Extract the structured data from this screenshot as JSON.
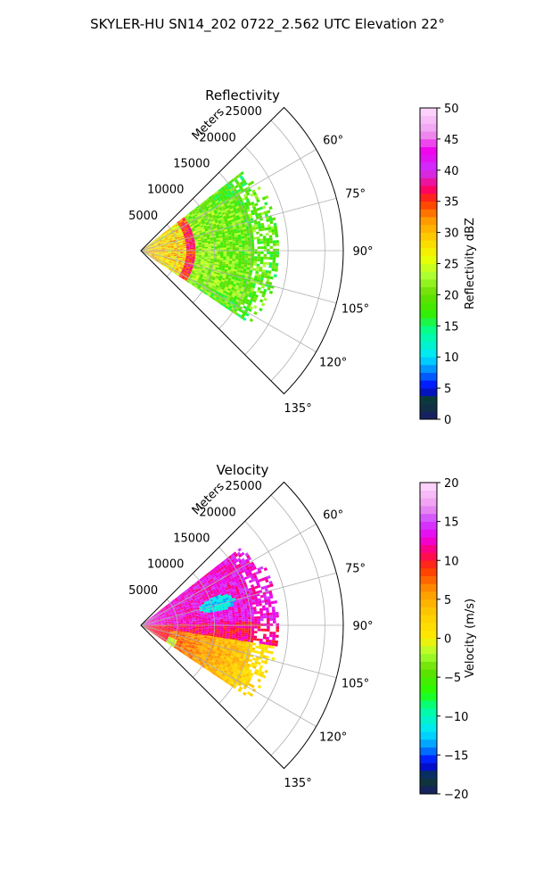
{
  "figure_title": "SKYLER-HU  SN14_202  0722_2.562 UTC Elevation 22°",
  "chart_data": [
    {
      "type": "heatmap",
      "title": "Reflectivity",
      "projection": "polar-sector",
      "azimuth_range_deg": [
        45,
        135
      ],
      "range_limit_m": 27500,
      "radial_label": "Meters",
      "radial_ticks": [
        "5000",
        "10000",
        "15000",
        "20000",
        "25000"
      ],
      "radial_tick_values": [
        5000,
        10000,
        15000,
        20000,
        25000
      ],
      "azimuth_ticks": [
        "60°",
        "75°",
        "90°",
        "105°",
        "120°",
        "135°"
      ],
      "azimuth_tick_values": [
        60,
        75,
        90,
        105,
        120,
        135
      ],
      "data_extent": {
        "azimuth_deg": [
          52,
          124
        ],
        "range_m_max": 18500
      },
      "grid": true,
      "colorbar": {
        "label": "Reflectivity dBZ",
        "vmin": 0,
        "vmax": 50,
        "ticks": [
          "0",
          "5",
          "10",
          "15",
          "20",
          "25",
          "30",
          "35",
          "40",
          "45",
          "50"
        ],
        "tick_values": [
          0,
          5,
          10,
          15,
          20,
          25,
          30,
          35,
          40,
          45,
          50
        ],
        "stops": [
          {
            "v": 0,
            "color": "#1a1a6e"
          },
          {
            "v": 3,
            "color": "#0b3d2e"
          },
          {
            "v": 5,
            "color": "#0000ff"
          },
          {
            "v": 8,
            "color": "#0090ff"
          },
          {
            "v": 10,
            "color": "#00e6ff"
          },
          {
            "v": 14,
            "color": "#00ff99"
          },
          {
            "v": 17,
            "color": "#33ee00"
          },
          {
            "v": 20,
            "color": "#66dd00"
          },
          {
            "v": 23,
            "color": "#aaff33"
          },
          {
            "v": 26,
            "color": "#eeff00"
          },
          {
            "v": 29,
            "color": "#ffd000"
          },
          {
            "v": 32,
            "color": "#ff9900"
          },
          {
            "v": 35,
            "color": "#ff3300"
          },
          {
            "v": 37,
            "color": "#ff0066"
          },
          {
            "v": 40,
            "color": "#cc33ff"
          },
          {
            "v": 43,
            "color": "#ee00ee"
          },
          {
            "v": 46,
            "color": "#ee99ee"
          },
          {
            "v": 50,
            "color": "#ffddff"
          }
        ]
      }
    },
    {
      "type": "heatmap",
      "title": "Velocity",
      "projection": "polar-sector",
      "azimuth_range_deg": [
        45,
        135
      ],
      "range_limit_m": 27500,
      "radial_label": "Meters",
      "radial_ticks": [
        "5000",
        "10000",
        "15000",
        "20000",
        "25000"
      ],
      "radial_tick_values": [
        5000,
        10000,
        15000,
        20000,
        25000
      ],
      "azimuth_ticks": [
        "60°",
        "75°",
        "90°",
        "105°",
        "120°",
        "135°"
      ],
      "azimuth_tick_values": [
        60,
        75,
        90,
        105,
        120,
        135
      ],
      "data_extent": {
        "azimuth_deg": [
          52,
          124
        ],
        "range_m_max": 18500
      },
      "grid": true,
      "colorbar": {
        "label": "Velocity (m/s)",
        "vmin": -20,
        "vmax": 20,
        "ticks": [
          "−20",
          "−15",
          "−10",
          "−5",
          "0",
          "5",
          "10",
          "15",
          "20"
        ],
        "tick_values": [
          -20,
          -15,
          -10,
          -5,
          0,
          5,
          10,
          15,
          20
        ],
        "stops": [
          {
            "v": -20,
            "color": "#1a1a6e"
          },
          {
            "v": -18,
            "color": "#0b3d2e"
          },
          {
            "v": -16,
            "color": "#0000ff"
          },
          {
            "v": -14,
            "color": "#0090ff"
          },
          {
            "v": -12,
            "color": "#00e6ff"
          },
          {
            "v": -9,
            "color": "#00ff99"
          },
          {
            "v": -7,
            "color": "#22ff00"
          },
          {
            "v": -4,
            "color": "#66dd00"
          },
          {
            "v": -2,
            "color": "#aaff33"
          },
          {
            "v": 0,
            "color": "#ffee00"
          },
          {
            "v": 3,
            "color": "#ffcc00"
          },
          {
            "v": 6,
            "color": "#ff9900"
          },
          {
            "v": 9,
            "color": "#ff3300"
          },
          {
            "v": 11,
            "color": "#ff0066"
          },
          {
            "v": 13,
            "color": "#ee00ee"
          },
          {
            "v": 15,
            "color": "#cc44ff"
          },
          {
            "v": 17,
            "color": "#ee99ee"
          },
          {
            "v": 20,
            "color": "#ffddff"
          }
        ]
      }
    }
  ]
}
